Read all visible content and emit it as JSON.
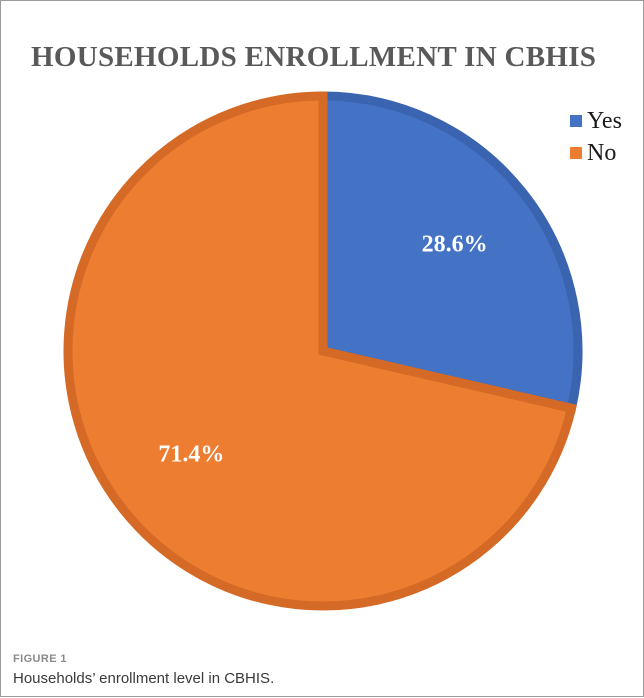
{
  "figure": {
    "label": "FIGURE 1",
    "caption": "Households’ enrollment level in CBHIS."
  },
  "chart_data": {
    "type": "pie",
    "title": "HOUSEHOLDS ENROLLMENT IN CBHIS",
    "categories": [
      "Yes",
      "No"
    ],
    "values": [
      28.6,
      71.4
    ],
    "data_labels": [
      "28.6%",
      "71.4%"
    ],
    "colors": [
      "#4472C4",
      "#ED7D31"
    ],
    "border_colors": [
      "#3A63B0",
      "#D46A25"
    ],
    "legend": {
      "placement": "top-right",
      "entries": [
        {
          "label": "Yes",
          "color": "#4472C4"
        },
        {
          "label": "No",
          "color": "#ED7D31"
        }
      ]
    }
  }
}
